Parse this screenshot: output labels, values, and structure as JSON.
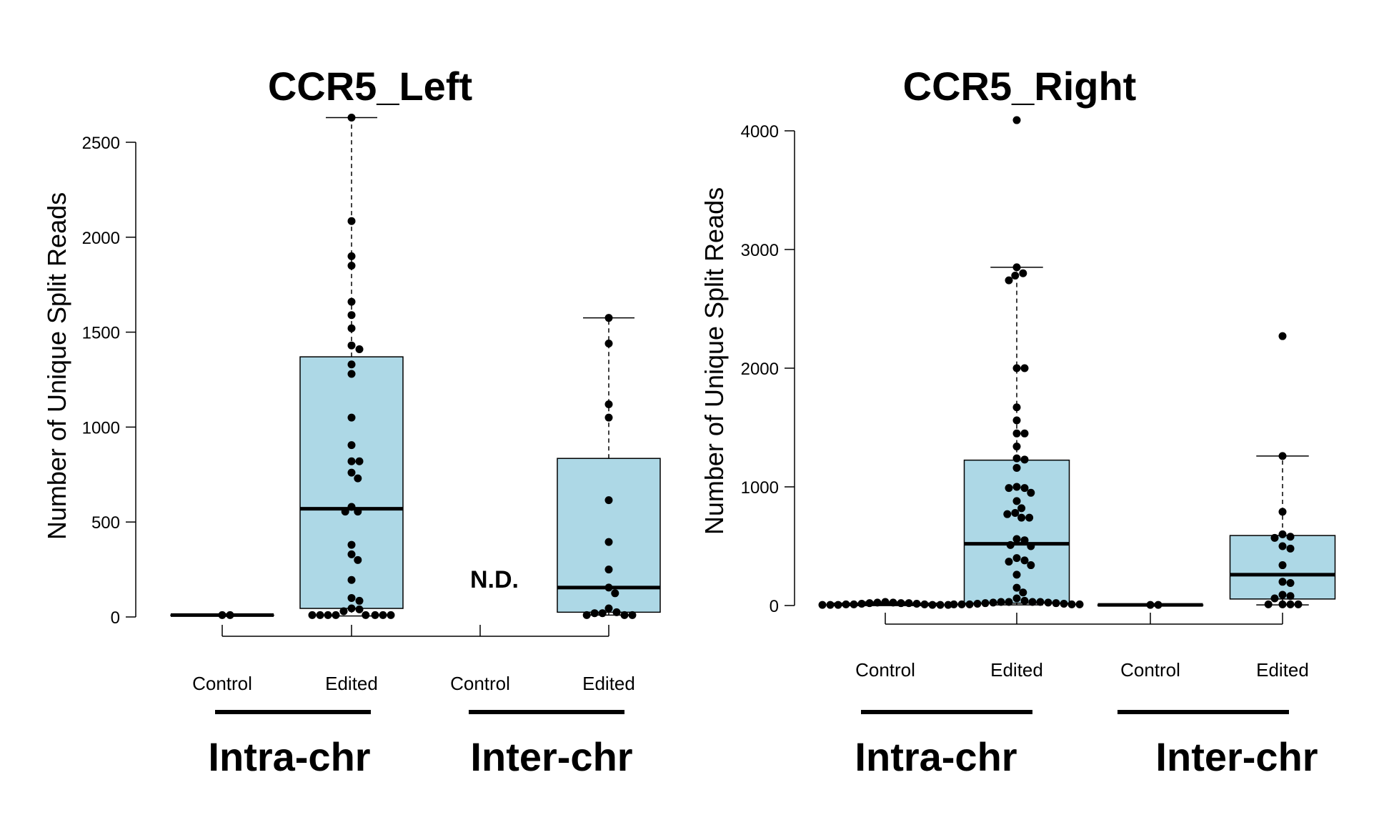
{
  "chart_data": [
    {
      "type": "box",
      "title": "CCR5_Left",
      "ylabel": "Number of Unique Split Reads",
      "ylim": [
        0,
        2600
      ],
      "yticks": [
        0,
        500,
        1000,
        1500,
        2000,
        2500
      ],
      "box_color": "#add8e6",
      "categories": [
        "Control",
        "Edited",
        "Control",
        "Edited"
      ],
      "groups": [
        {
          "label": "Intra-chr",
          "categories": [
            0,
            1
          ]
        },
        {
          "label": "Inter-chr",
          "categories": [
            2,
            3
          ]
        }
      ],
      "annotations": [
        {
          "category": 2,
          "text": "N.D."
        }
      ],
      "boxes": [
        {
          "category": "Control",
          "group": "Intra-chr",
          "q1": 10,
          "median": 10,
          "q3": 10,
          "whisker_low": 10,
          "whisker_high": 10,
          "points": [
            10,
            10
          ]
        },
        {
          "category": "Edited",
          "group": "Intra-chr",
          "q1": 45,
          "median": 570,
          "q3": 1370,
          "whisker_low": 5,
          "whisker_high": 2630,
          "points": [
            2630,
            2085,
            1900,
            1850,
            1660,
            1590,
            1520,
            1430,
            1410,
            1330,
            1280,
            1050,
            905,
            820,
            820,
            760,
            730,
            580,
            555,
            555,
            380,
            330,
            300,
            195,
            100,
            85,
            45,
            40,
            30,
            10,
            10,
            10,
            10,
            10,
            10,
            10,
            10
          ]
        },
        {
          "category": "Control",
          "group": "Inter-chr",
          "nd": true
        },
        {
          "category": "Edited",
          "group": "Inter-chr",
          "q1": 25,
          "median": 155,
          "q3": 835,
          "whisker_low": 10,
          "whisker_high": 1575,
          "points": [
            1575,
            1440,
            1120,
            1050,
            615,
            395,
            250,
            155,
            125,
            45,
            25,
            20,
            20,
            10,
            10,
            10
          ]
        }
      ]
    },
    {
      "type": "box",
      "title": "CCR5_Right",
      "ylabel": "Number of Unique Split Reads",
      "ylim": [
        0,
        4100
      ],
      "yticks": [
        0,
        1000,
        2000,
        3000,
        4000
      ],
      "box_color": "#add8e6",
      "categories": [
        "Control",
        "Edited",
        "Control",
        "Edited"
      ],
      "groups": [
        {
          "label": "Intra-chr",
          "categories": [
            0,
            1
          ]
        },
        {
          "label": "Inter-chr",
          "categories": [
            2,
            3
          ]
        }
      ],
      "boxes": [
        {
          "category": "Control",
          "group": "Intra-chr",
          "q1": 10,
          "median": 10,
          "q3": 10,
          "whisker_low": 5,
          "whisker_high": 30,
          "points": [
            30,
            25,
            25,
            20,
            20,
            15,
            10,
            10,
            5,
            5,
            5,
            5,
            5,
            5,
            10,
            15,
            20
          ]
        },
        {
          "category": "Edited",
          "group": "Intra-chr",
          "q1": 20,
          "median": 520,
          "q3": 1225,
          "whisker_low": 5,
          "whisker_high": 2850,
          "points": [
            4090,
            2850,
            2800,
            2780,
            2740,
            2000,
            2000,
            1670,
            1560,
            1450,
            1450,
            1340,
            1240,
            1230,
            1160,
            1000,
            990,
            990,
            950,
            880,
            820,
            780,
            770,
            740,
            740,
            560,
            550,
            510,
            500,
            400,
            380,
            370,
            340,
            260,
            150,
            110,
            60,
            40,
            30,
            30,
            25,
            20,
            15,
            10,
            10,
            10,
            10,
            10,
            15,
            20,
            25,
            30,
            30
          ]
        },
        {
          "category": "Control",
          "group": "Inter-chr",
          "q1": 5,
          "median": 5,
          "q3": 5,
          "whisker_low": 5,
          "whisker_high": 5,
          "points": [
            5,
            5
          ]
        },
        {
          "category": "Edited",
          "group": "Inter-chr",
          "q1": 55,
          "median": 260,
          "q3": 590,
          "whisker_low": 5,
          "whisker_high": 1260,
          "points": [
            2270,
            1260,
            790,
            600,
            580,
            570,
            500,
            480,
            340,
            200,
            190,
            90,
            80,
            60,
            10,
            10,
            10,
            10
          ]
        }
      ]
    }
  ]
}
